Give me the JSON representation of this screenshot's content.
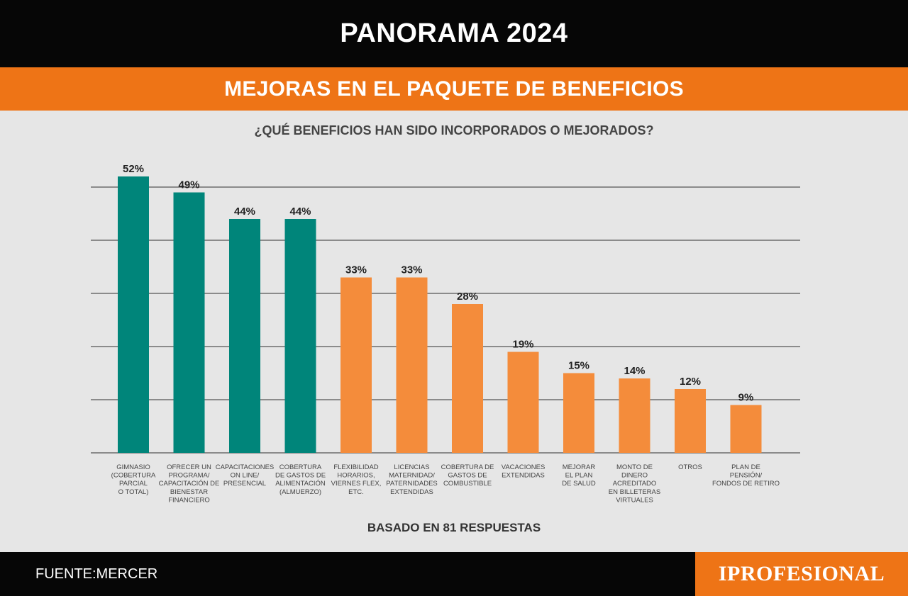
{
  "header": {
    "title": "PANORAMA 2024",
    "subtitle": "MEJORAS EN EL PAQUETE DE BENEFICIOS"
  },
  "colors": {
    "teal": "#00857a",
    "orange": "#f48c3b",
    "header_orange": "#ee7416",
    "grid": "#555555"
  },
  "chart_data": {
    "type": "bar",
    "title": "¿QUÉ BENEFICIOS HAN SIDO INCORPORADOS O MEJORADOS?",
    "xlabel": "",
    "ylabel": "",
    "ylim": [
      0,
      50
    ],
    "grid": true,
    "categories": [
      [
        "GIMNASIO",
        "(COBERTURA",
        "PARCIAL",
        "O TOTAL)"
      ],
      [
        "OFRECER UN",
        "PROGRAMA/",
        "CAPACITACIÓN DE",
        "BIENESTAR",
        "FINANCIERO"
      ],
      [
        "CAPACITACIONES",
        "ON LINE/",
        "PRESENCIAL"
      ],
      [
        "COBERTURA",
        "DE GASTOS DE",
        "ALIMENTACIÓN",
        "(ALMUERZO)"
      ],
      [
        "FLEXIBILIDAD",
        "HORARIOS,",
        "VIERNES FLEX,",
        "ETC."
      ],
      [
        "LICENCIAS",
        "MATERNIDAD/",
        "PATERNIDADES",
        "EXTENDIDAS"
      ],
      [
        "COBERTURA DE",
        "GASTOS DE",
        "COMBUSTIBLE"
      ],
      [
        "VACACIONES",
        "EXTENDIDAS"
      ],
      [
        "MEJORAR",
        "EL PLAN",
        "DE SALUD"
      ],
      [
        "MONTO DE",
        "DINERO",
        "ACREDITADO",
        "EN BILLETERAS",
        "VIRTUALES"
      ],
      [
        "OTROS"
      ],
      [
        "PLAN DE",
        "PENSIÓN/",
        "FONDOS DE RETIRO"
      ]
    ],
    "values": [
      52,
      49,
      44,
      44,
      33,
      33,
      28,
      19,
      15,
      14,
      12,
      9
    ],
    "value_labels": [
      "52%",
      "49%",
      "44%",
      "44%",
      "33%",
      "33%",
      "28%",
      "19%",
      "15%",
      "14%",
      "12%",
      "9%"
    ],
    "bar_colors": [
      "teal",
      "teal",
      "teal",
      "teal",
      "orange",
      "orange",
      "orange",
      "orange",
      "orange",
      "orange",
      "orange",
      "orange"
    ]
  },
  "note": "BASADO EN 81 RESPUESTAS",
  "footer": {
    "source": "FUENTE:MERCER",
    "brand": "IPROFESIONAL"
  }
}
